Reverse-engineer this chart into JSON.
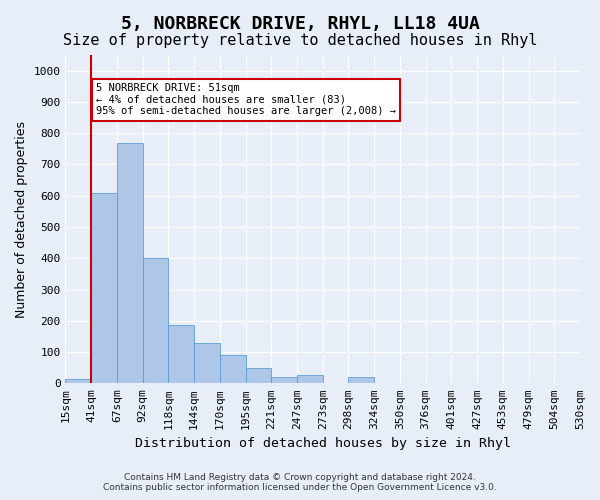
{
  "title": "5, NORBRECK DRIVE, RHYL, LL18 4UA",
  "subtitle": "Size of property relative to detached houses in Rhyl",
  "xlabel": "Distribution of detached houses by size in Rhyl",
  "ylabel": "Number of detached properties",
  "footer_line1": "Contains HM Land Registry data © Crown copyright and database right 2024.",
  "footer_line2": "Contains public sector information licensed under the Open Government Licence v3.0.",
  "bin_labels": [
    "15sqm",
    "41sqm",
    "67sqm",
    "92sqm",
    "118sqm",
    "144sqm",
    "170sqm",
    "195sqm",
    "221sqm",
    "247sqm",
    "273sqm",
    "298sqm",
    "324sqm",
    "350sqm",
    "376sqm",
    "401sqm",
    "427sqm",
    "453sqm",
    "479sqm",
    "504sqm",
    "530sqm"
  ],
  "bar_values": [
    15,
    610,
    770,
    400,
    185,
    130,
    90,
    50,
    20,
    25,
    0,
    20,
    0,
    0,
    0,
    0,
    0,
    0,
    0,
    0
  ],
  "bar_color": "#aec6e8",
  "bar_edge_color": "#5a9fd4",
  "ylim": [
    0,
    1050
  ],
  "yticks": [
    0,
    100,
    200,
    300,
    400,
    500,
    600,
    700,
    800,
    900,
    1000
  ],
  "red_line_x": 1,
  "annotation_text": "5 NORBRECK DRIVE: 51sqm\n← 4% of detached houses are smaller (83)\n95% of semi-detached houses are larger (2,008) →",
  "annotation_box_color": "#ffffff",
  "annotation_border_color": "#cc0000",
  "background_color": "#e8eef7",
  "plot_bg_color": "#e8eef7",
  "grid_color": "#ffffff",
  "title_fontsize": 13,
  "subtitle_fontsize": 11,
  "axis_label_fontsize": 9,
  "tick_fontsize": 8
}
